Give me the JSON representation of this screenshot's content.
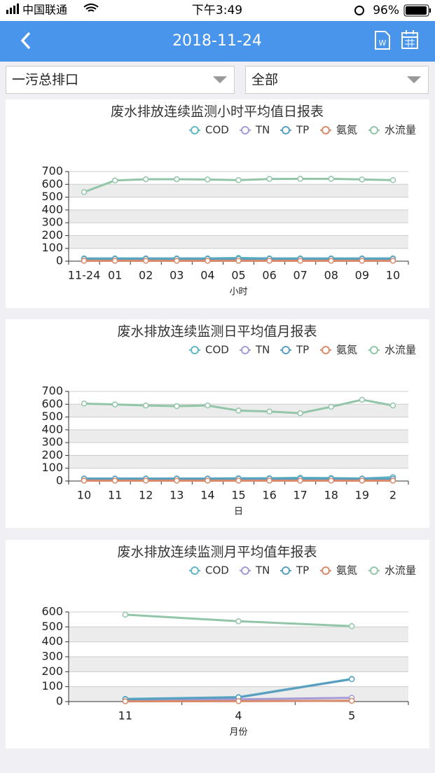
{
  "status_bar": {
    "carrier": "中国联通",
    "time": "下午3:49",
    "battery": "96%"
  },
  "header": {
    "title": "2018-11-24"
  },
  "filters": {
    "outlet": "一污总排口",
    "scope": "全部"
  },
  "chart_data": [
    {
      "type": "line",
      "title": "废水排放连续监测小时平均值日报表",
      "x_label": "小时",
      "categories": [
        "11-24",
        "01",
        "02",
        "03",
        "04",
        "05",
        "06",
        "07",
        "08",
        "09",
        "10"
      ],
      "series": [
        {
          "name": "COD",
          "color": "#61b9c4",
          "values": [
            22,
            22,
            22,
            22,
            22,
            25,
            22,
            22,
            22,
            22,
            22
          ]
        },
        {
          "name": "TN",
          "color": "#a59bd6",
          "values": [
            15,
            15,
            15,
            15,
            15,
            15,
            15,
            15,
            15,
            15,
            15
          ]
        },
        {
          "name": "TP",
          "color": "#5b9fc0",
          "values": [
            18,
            18,
            18,
            18,
            18,
            18,
            18,
            18,
            18,
            18,
            18
          ]
        },
        {
          "name": "氨氮",
          "color": "#d98a6a",
          "values": [
            3,
            3,
            3,
            3,
            3,
            3,
            3,
            3,
            3,
            3,
            3
          ]
        },
        {
          "name": "水流量",
          "color": "#93c6a8",
          "values": [
            540,
            630,
            640,
            640,
            638,
            633,
            642,
            643,
            643,
            638,
            633
          ]
        }
      ],
      "ylim": [
        0,
        700
      ],
      "yticks": [
        0,
        100,
        200,
        300,
        400,
        500,
        600,
        700
      ],
      "grid": true
    },
    {
      "type": "line",
      "title": "废水排放连续监测日平均值月报表",
      "x_label": "日",
      "categories": [
        "10",
        "11",
        "12",
        "13",
        "14",
        "15",
        "16",
        "17",
        "18",
        "19",
        "2"
      ],
      "series": [
        {
          "name": "COD",
          "color": "#61b9c4",
          "values": [
            20,
            20,
            20,
            20,
            20,
            22,
            22,
            25,
            23,
            20,
            30
          ]
        },
        {
          "name": "TN",
          "color": "#a59bd6",
          "values": [
            15,
            15,
            15,
            15,
            15,
            15,
            15,
            15,
            15,
            15,
            15
          ]
        },
        {
          "name": "TP",
          "color": "#5b9fc0",
          "values": [
            18,
            18,
            18,
            18,
            18,
            18,
            18,
            18,
            18,
            18,
            18
          ]
        },
        {
          "name": "氨氮",
          "color": "#d98a6a",
          "values": [
            3,
            3,
            3,
            3,
            3,
            3,
            3,
            3,
            3,
            3,
            3
          ]
        },
        {
          "name": "水流量",
          "color": "#93c6a8",
          "values": [
            605,
            598,
            590,
            585,
            590,
            550,
            543,
            530,
            580,
            635,
            590
          ]
        }
      ],
      "ylim": [
        0,
        700
      ],
      "yticks": [
        0,
        100,
        200,
        300,
        400,
        500,
        600,
        700
      ],
      "grid": true
    },
    {
      "type": "line",
      "title": "废水排放连续监测月平均值年报表",
      "x_label": "月份",
      "categories": [
        "11",
        "4",
        "5"
      ],
      "series": [
        {
          "name": "COD",
          "color": "#61b9c4",
          "values": [
            18,
            30,
            152
          ]
        },
        {
          "name": "TN",
          "color": "#a59bd6",
          "values": [
            10,
            15,
            25
          ]
        },
        {
          "name": "TP",
          "color": "#5b9fc0",
          "values": [
            15,
            28,
            150
          ]
        },
        {
          "name": "氨氮",
          "color": "#d98a6a",
          "values": [
            2,
            3,
            5
          ]
        },
        {
          "name": "水流量",
          "color": "#93c6a8",
          "values": [
            582,
            538,
            505
          ]
        }
      ],
      "ylim": [
        0,
        600
      ],
      "yticks": [
        0,
        100,
        200,
        300,
        400,
        500,
        600
      ],
      "grid": true
    }
  ]
}
